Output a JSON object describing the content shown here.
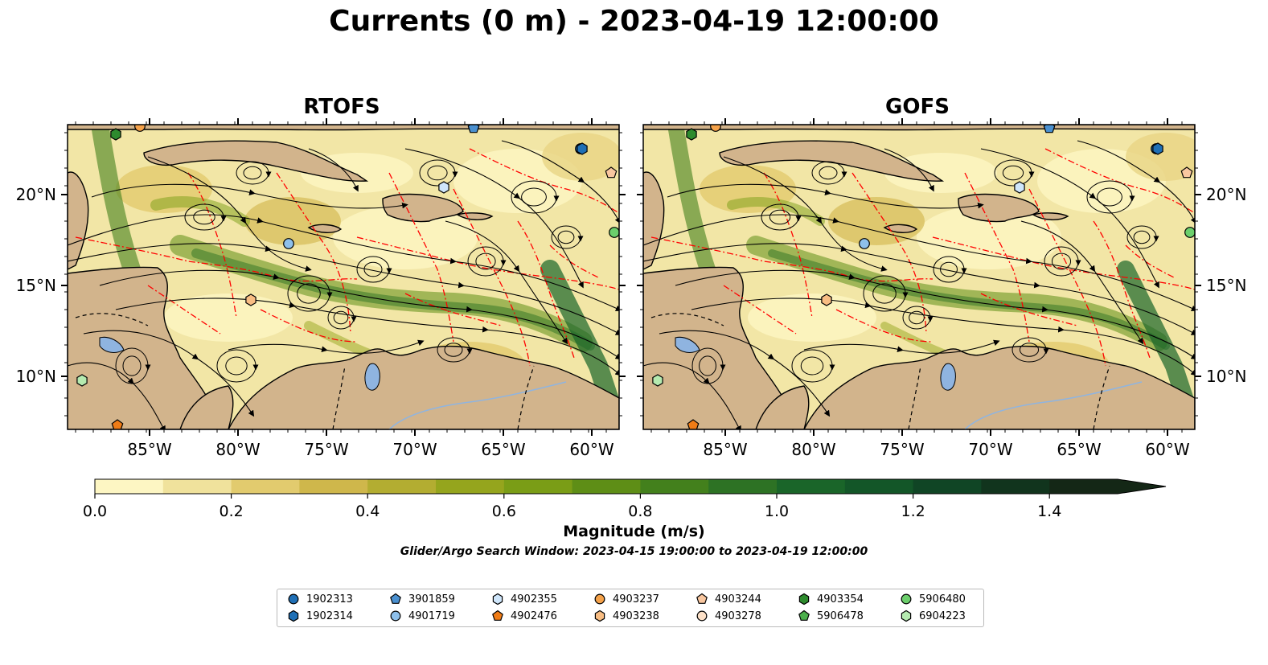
{
  "title": "Currents (0 m) - 2023-04-19 12:00:00",
  "panels": [
    {
      "title": "RTOFS"
    },
    {
      "title": "GOFS"
    }
  ],
  "axes": {
    "lon_ticks": [
      "85°W",
      "80°W",
      "75°W",
      "70°W",
      "65°W",
      "60°W"
    ],
    "lat_ticks": [
      "20°N",
      "15°N",
      "10°N"
    ]
  },
  "colorbar": {
    "label": "Magnitude (m/s)",
    "ticks": [
      "0.0",
      "0.2",
      "0.4",
      "0.6",
      "0.8",
      "1.0",
      "1.2",
      "1.4"
    ],
    "colors": [
      "#fdf6c3",
      "#f0e29c",
      "#e2cb6e",
      "#cfb74b",
      "#b3ad31",
      "#95a51d",
      "#7a9d16",
      "#5e8e16",
      "#43801c",
      "#2d7224",
      "#1a6529",
      "#135628",
      "#104525",
      "#11341d",
      "#142716"
    ],
    "extend": "max"
  },
  "search_window": "Glider/Argo Search Window: 2023-04-15 19:00:00 to 2023-04-19 12:00:00",
  "map_colors": {
    "land": "#d2b48c",
    "lake": "#8fb4e0",
    "eez": "#ff0000"
  },
  "legend": [
    {
      "id": "1902313",
      "marker": "circle",
      "color": "#1f6fb5"
    },
    {
      "id": "1902314",
      "marker": "hexagon",
      "color": "#1f6fb5"
    },
    {
      "id": "3901859",
      "marker": "pentagon",
      "color": "#4a90d0"
    },
    {
      "id": "4901719",
      "marker": "circle",
      "color": "#8ec0eb"
    },
    {
      "id": "4902355",
      "marker": "hexagon",
      "color": "#cfe6fb"
    },
    {
      "id": "4902476",
      "marker": "pentagon",
      "color": "#f07c16"
    },
    {
      "id": "4903237",
      "marker": "circle",
      "color": "#f5a24a"
    },
    {
      "id": "4903238",
      "marker": "hexagon",
      "color": "#f8bd83"
    },
    {
      "id": "4903244",
      "marker": "pentagon",
      "color": "#f9c7a0"
    },
    {
      "id": "4903278",
      "marker": "circle",
      "color": "#fde1c8"
    },
    {
      "id": "4903354",
      "marker": "hexagon",
      "color": "#2e8b2e"
    },
    {
      "id": "5906478",
      "marker": "pentagon",
      "color": "#4caf4c"
    },
    {
      "id": "5906480",
      "marker": "circle",
      "color": "#6ccf6c"
    },
    {
      "id": "6904223",
      "marker": "hexagon",
      "color": "#b5eab0"
    }
  ]
}
